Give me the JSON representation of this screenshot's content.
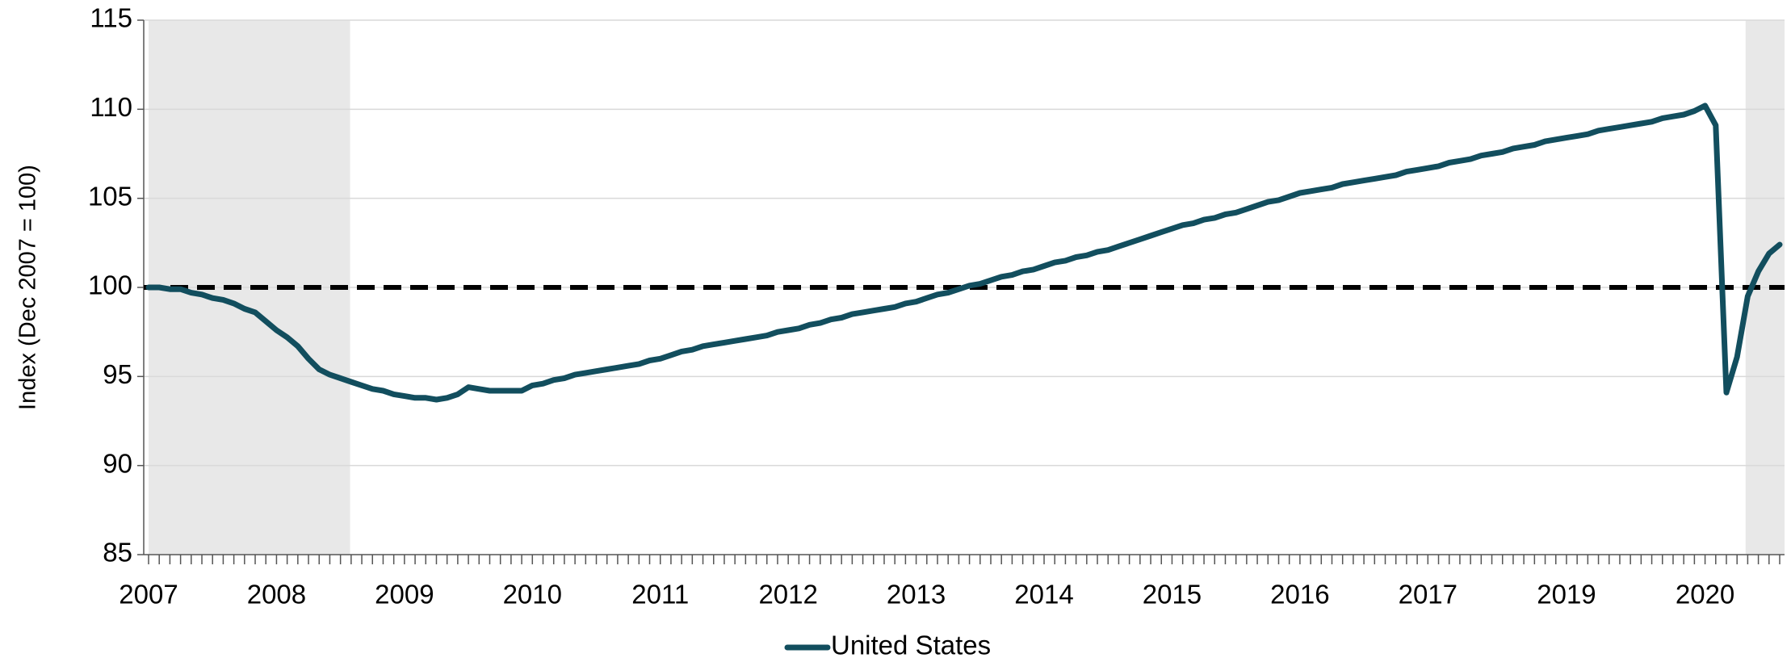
{
  "chart_data": {
    "type": "line",
    "y_label": "Index (Dec 2007 = 100)",
    "categories": [
      "2007",
      null,
      null,
      null,
      null,
      null,
      null,
      null,
      null,
      null,
      null,
      null,
      "2008",
      null,
      null,
      null,
      null,
      null,
      null,
      null,
      null,
      null,
      null,
      null,
      "2009",
      null,
      null,
      null,
      null,
      null,
      null,
      null,
      null,
      null,
      null,
      null,
      "2010",
      null,
      null,
      null,
      null,
      null,
      null,
      null,
      null,
      null,
      null,
      null,
      "2011",
      null,
      null,
      null,
      null,
      null,
      null,
      null,
      null,
      null,
      null,
      null,
      "2012",
      null,
      null,
      null,
      null,
      null,
      null,
      null,
      null,
      null,
      null,
      null,
      "2013",
      null,
      null,
      null,
      null,
      null,
      null,
      null,
      null,
      null,
      null,
      null,
      "2014",
      null,
      null,
      null,
      null,
      null,
      null,
      null,
      null,
      null,
      null,
      null,
      "2015",
      null,
      null,
      null,
      null,
      null,
      null,
      null,
      null,
      null,
      null,
      null,
      "2016",
      null,
      null,
      null,
      null,
      null,
      null,
      null,
      null,
      null,
      null,
      null,
      "2017",
      null,
      null,
      null,
      null,
      null,
      null,
      null,
      null,
      null,
      null,
      null,
      null,
      "2019",
      null,
      null,
      null,
      null,
      null,
      null,
      null,
      null,
      null,
      null,
      null,
      null,
      "2020",
      null,
      null,
      null,
      null,
      null,
      null,
      null
    ],
    "series": [
      {
        "name": "United States",
        "color": "#124e5e",
        "values": [
          100.0,
          100.0,
          99.9,
          99.9,
          99.7,
          99.6,
          99.4,
          99.3,
          99.1,
          98.8,
          98.6,
          98.1,
          97.6,
          97.2,
          96.7,
          96.0,
          95.4,
          95.1,
          94.9,
          94.7,
          94.5,
          94.3,
          94.2,
          94.0,
          93.9,
          93.8,
          93.8,
          93.7,
          93.8,
          94.0,
          94.4,
          94.3,
          94.2,
          94.2,
          94.2,
          94.2,
          94.5,
          94.6,
          94.8,
          94.9,
          95.1,
          95.2,
          95.3,
          95.4,
          95.5,
          95.6,
          95.7,
          95.9,
          96.0,
          96.2,
          96.4,
          96.5,
          96.7,
          96.8,
          96.9,
          97.0,
          97.1,
          97.2,
          97.3,
          97.5,
          97.6,
          97.7,
          97.9,
          98.0,
          98.2,
          98.3,
          98.5,
          98.6,
          98.7,
          98.8,
          98.9,
          99.1,
          99.2,
          99.4,
          99.6,
          99.7,
          99.9,
          100.1,
          100.2,
          100.4,
          100.6,
          100.7,
          100.9,
          101.0,
          101.2,
          101.4,
          101.5,
          101.7,
          101.8,
          102.0,
          102.1,
          102.3,
          102.5,
          102.7,
          102.9,
          103.1,
          103.3,
          103.5,
          103.6,
          103.8,
          103.9,
          104.1,
          104.2,
          104.4,
          104.6,
          104.8,
          104.9,
          105.1,
          105.3,
          105.4,
          105.5,
          105.6,
          105.8,
          105.9,
          106.0,
          106.1,
          106.2,
          106.3,
          106.5,
          106.6,
          106.7,
          106.8,
          107.0,
          107.1,
          107.2,
          107.4,
          107.5,
          107.6,
          107.8,
          107.9,
          108.0,
          108.2,
          108.3,
          108.4,
          108.5,
          108.6,
          108.8,
          108.9,
          109.0,
          109.1,
          109.2,
          109.3,
          109.5,
          109.6,
          109.7,
          109.9,
          110.2,
          109.1,
          94.1,
          96.1,
          99.5,
          100.9,
          101.9,
          102.4
        ]
      }
    ],
    "ylim": [
      85,
      115
    ],
    "yticks": [
      85,
      90,
      95,
      100,
      105,
      110,
      115
    ],
    "grid": true,
    "reference_line": 100,
    "shaded_ranges": [
      [
        0,
        18.4
      ],
      [
        149.8,
        153
      ]
    ],
    "shade_color": "#e8e8e8",
    "legend": "bottom"
  }
}
